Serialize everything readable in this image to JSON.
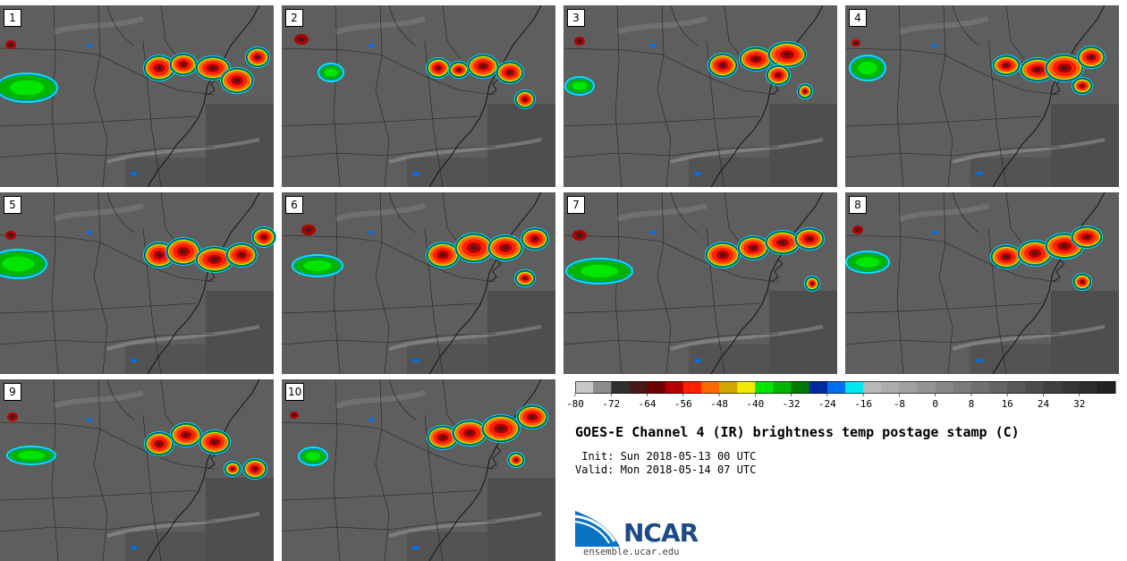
{
  "panels": [
    {
      "label": "1"
    },
    {
      "label": "2"
    },
    {
      "label": "3"
    },
    {
      "label": "4"
    },
    {
      "label": "5"
    },
    {
      "label": "6"
    },
    {
      "label": "7"
    },
    {
      "label": "8"
    },
    {
      "label": "9"
    },
    {
      "label": "10"
    }
  ],
  "colorbar": {
    "tick_labels": [
      "-80",
      "-72",
      "-64",
      "-56",
      "-48",
      "-40",
      "-32",
      "-24",
      "-16",
      "-8",
      "0",
      "8",
      "16",
      "24",
      "32"
    ],
    "bin_colors": [
      "#c8c8c8",
      "#8c8c8c",
      "#2f2f2f",
      "#4a1818",
      "#6e0000",
      "#b40000",
      "#ff2000",
      "#ff6a00",
      "#d2a800",
      "#f0e800",
      "#00e600",
      "#00b400",
      "#007800",
      "#0028a0",
      "#0070f0",
      "#00e8f0",
      "#b8b8b8",
      "#acacac",
      "#a0a0a0",
      "#949494",
      "#888888",
      "#7c7c7c",
      "#707070",
      "#646464",
      "#585858",
      "#4c4c4c",
      "#404040",
      "#363636",
      "#2c2c2c",
      "#222222"
    ]
  },
  "title": "GOES-E Channel 4 (IR) brightness temp postage stamp (C)",
  "init_text": " Init: Sun 2018-05-13 00 UTC",
  "valid_text": "Valid: Mon 2018-05-14 07 UTC",
  "logo": {
    "brand": "NCAR",
    "website": "ensemble.ucar.edu",
    "brand_color": "#1c4a8a",
    "swoosh_color": "#0a74c4"
  }
}
